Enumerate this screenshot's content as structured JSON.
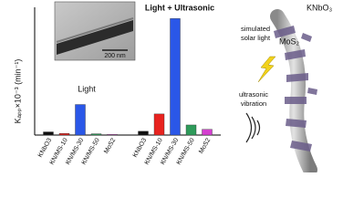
{
  "chart_data": {
    "type": "bar",
    "y_label": "Kₐₚₚ×10⁻³ (min⁻¹)",
    "ylim": [
      0,
      40
    ],
    "colors": [
      "#111111",
      "#e8231f",
      "#2a57e8",
      "#2e9b5a",
      "#d43fd0"
    ],
    "groups": [
      {
        "label": "Light",
        "categories": [
          "KNbO3",
          "KN/MS-10",
          "KN/MS-30",
          "KN/MS-50",
          "MoS2"
        ],
        "values": [
          1.0,
          0.5,
          9.7,
          0.4,
          0.2
        ]
      },
      {
        "label": "Light + Ultrasonic",
        "categories": [
          "KNbO3",
          "KN/MS-10",
          "KN/MS-30",
          "KN/MS-50",
          "MoS2"
        ],
        "values": [
          1.2,
          6.7,
          37,
          3.2,
          1.8
        ]
      }
    ]
  },
  "inset": {
    "scale_bar": "200 nm"
  },
  "schematic": {
    "material": "KNbO₃",
    "flakes": "MoS₂",
    "light": [
      "simulated",
      "solar light"
    ],
    "vibration": [
      "ultrasonic",
      "vibration"
    ]
  }
}
